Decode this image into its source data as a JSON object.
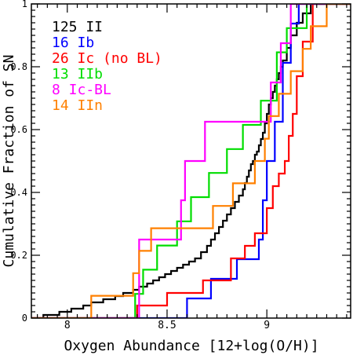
{
  "chart_data": {
    "type": "line",
    "subtype": "step-cumulative",
    "xlabel": "Oxygen Abundance [12+log(O/H)]",
    "ylabel": "Cumulative Fraction of SN",
    "xlim": [
      7.82,
      9.42
    ],
    "ylim": [
      0,
      1
    ],
    "x_ticks": [
      8,
      8.5,
      9
    ],
    "x_tick_labels": [
      "8",
      "8.5",
      "9"
    ],
    "y_ticks": [
      0,
      0.2,
      0.4,
      0.6,
      0.8,
      1
    ],
    "y_tick_labels": [
      "0",
      "0.2",
      "0.4",
      "0.6",
      "0.8",
      "1"
    ],
    "legend_position": "top-left",
    "series": [
      {
        "name": "125 II",
        "color": "#000000",
        "x": [
          7.88,
          7.96,
          8.02,
          8.08,
          8.12,
          8.18,
          8.24,
          8.28,
          8.33,
          8.36,
          8.4,
          8.43,
          8.46,
          8.49,
          8.52,
          8.55,
          8.58,
          8.61,
          8.64,
          8.67,
          8.7,
          8.72,
          8.74,
          8.76,
          8.78,
          8.8,
          8.82,
          8.84,
          8.86,
          8.88,
          8.89,
          8.9,
          8.91,
          8.92,
          8.93,
          8.94,
          8.95,
          8.96,
          8.97,
          8.98,
          8.99,
          9.0,
          9.01,
          9.02,
          9.03,
          9.04,
          9.05,
          9.06,
          9.07,
          9.08,
          9.1,
          9.12,
          9.15,
          9.18,
          9.22
        ],
        "y": [
          0.01,
          0.02,
          0.03,
          0.04,
          0.05,
          0.06,
          0.07,
          0.08,
          0.09,
          0.1,
          0.11,
          0.12,
          0.13,
          0.14,
          0.15,
          0.16,
          0.17,
          0.18,
          0.19,
          0.21,
          0.23,
          0.25,
          0.27,
          0.29,
          0.31,
          0.33,
          0.35,
          0.37,
          0.39,
          0.41,
          0.43,
          0.45,
          0.47,
          0.49,
          0.5,
          0.52,
          0.53,
          0.55,
          0.57,
          0.59,
          0.62,
          0.65,
          0.68,
          0.7,
          0.72,
          0.74,
          0.76,
          0.78,
          0.8,
          0.82,
          0.86,
          0.9,
          0.94,
          0.97,
          1.0
        ]
      },
      {
        "name": "16 Ib",
        "color": "#0000ff",
        "x": [
          8.6,
          8.72,
          8.85,
          8.96,
          8.98,
          9.0,
          9.04,
          9.08,
          9.12,
          9.16
        ],
        "y": [
          0.0625,
          0.125,
          0.1875,
          0.25,
          0.375,
          0.5,
          0.625,
          0.8125,
          0.9375,
          1.0
        ]
      },
      {
        "name": "26 Ic (no BL)",
        "color": "#ff0000",
        "x": [
          8.35,
          8.5,
          8.68,
          8.82,
          8.89,
          8.94,
          9.0,
          9.03,
          9.06,
          9.09,
          9.11,
          9.13,
          9.15,
          9.18,
          9.23
        ],
        "y": [
          0.04,
          0.08,
          0.12,
          0.19,
          0.23,
          0.27,
          0.35,
          0.42,
          0.46,
          0.5,
          0.58,
          0.65,
          0.77,
          0.88,
          1.0
        ]
      },
      {
        "name": "13 IIb",
        "color": "#00dd00",
        "x": [
          8.34,
          8.38,
          8.45,
          8.55,
          8.62,
          8.71,
          8.8,
          8.88,
          8.97,
          9.05,
          9.1,
          9.2
        ],
        "y": [
          0.077,
          0.154,
          0.231,
          0.308,
          0.385,
          0.462,
          0.538,
          0.615,
          0.692,
          0.846,
          0.923,
          1.0
        ]
      },
      {
        "name": "8 Ic-BL",
        "color": "#ff00ff",
        "x": [
          8.36,
          8.57,
          8.59,
          8.69,
          9.02,
          9.07,
          9.12
        ],
        "y": [
          0.25,
          0.375,
          0.5,
          0.625,
          0.75,
          0.875,
          1.0
        ]
      },
      {
        "name": "14 IIn",
        "color": "#ff8000",
        "x": [
          8.12,
          8.33,
          8.36,
          8.42,
          8.73,
          8.83,
          8.94,
          8.99,
          9.01,
          9.06,
          9.12,
          9.18,
          9.22,
          9.3
        ],
        "y": [
          0.071,
          0.143,
          0.214,
          0.286,
          0.357,
          0.429,
          0.5,
          0.571,
          0.643,
          0.714,
          0.786,
          0.857,
          0.929,
          1.0
        ]
      }
    ]
  }
}
